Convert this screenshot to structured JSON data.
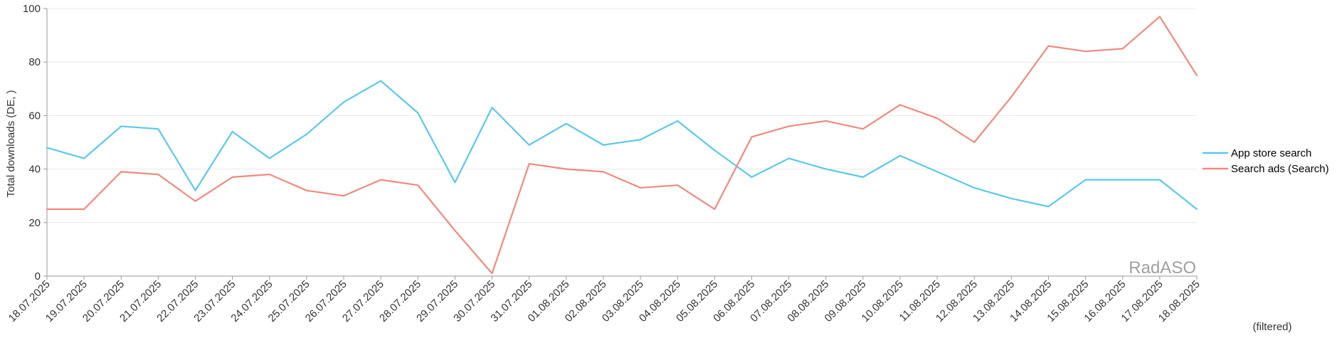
{
  "chart_data": {
    "type": "line",
    "ylabel": "Total downloads (DE, )",
    "ylim": [
      0,
      100
    ],
    "yticks": [
      0,
      20,
      40,
      60,
      80,
      100
    ],
    "grid": true,
    "legend_position": "right",
    "watermark": "RadASO",
    "footnote": "(filtered)",
    "categories": [
      "18.07.2025",
      "19.07.2025",
      "20.07.2025",
      "21.07.2025",
      "22.07.2025",
      "23.07.2025",
      "24.07.2025",
      "25.07.2025",
      "26.07.2025",
      "27.07.2025",
      "28.07.2025",
      "29.07.2025",
      "30.07.2025",
      "31.07.2025",
      "01.08.2025",
      "02.08.2025",
      "03.08.2025",
      "04.08.2025",
      "05.08.2025",
      "06.08.2025",
      "07.08.2025",
      "08.08.2025",
      "09.08.2025",
      "10.08.2025",
      "11.08.2025",
      "12.08.2025",
      "13.08.2025",
      "14.08.2025",
      "15.08.2025",
      "16.08.2025",
      "17.08.2025",
      "18.08.2025"
    ],
    "series": [
      {
        "name": "App store search",
        "color": "#5bc8eb",
        "values": [
          48,
          44,
          56,
          55,
          32,
          54,
          44,
          53,
          65,
          73,
          61,
          35,
          63,
          49,
          57,
          49,
          51,
          58,
          47,
          37,
          44,
          40,
          37,
          45,
          39,
          33,
          29,
          26,
          36,
          36,
          36,
          25
        ]
      },
      {
        "name": "Search ads (Search)",
        "color": "#f08a7e",
        "values": [
          25,
          25,
          39,
          38,
          28,
          37,
          38,
          32,
          30,
          36,
          34,
          17,
          1,
          42,
          40,
          39,
          33,
          34,
          25,
          52,
          56,
          58,
          55,
          64,
          59,
          50,
          67,
          86,
          84,
          85,
          97,
          75
        ]
      }
    ]
  }
}
